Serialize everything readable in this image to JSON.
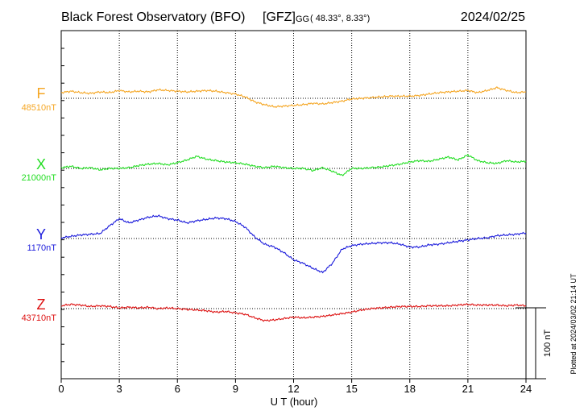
{
  "header": {
    "title": "Black Forest Observatory (BFO)",
    "source": "[GFZ]",
    "coord_prefix": "GG",
    "coords": "( 48.33°,   8.33°)",
    "date": "2024/02/25"
  },
  "footer": {
    "plotted": "Plotted at 2024/03/02 21:14 UT"
  },
  "chart_data": {
    "type": "line",
    "xlabel": "U T (hour)",
    "xlim": [
      0,
      24
    ],
    "xticks": [
      "0",
      "3",
      "6",
      "9",
      "12",
      "15",
      "18",
      "21",
      "24"
    ],
    "grid": true,
    "scale_bar": {
      "label": "100 nT",
      "value": 100
    },
    "series": [
      {
        "name": "F",
        "baseline_label": "48510nT",
        "baseline": 48510,
        "color": "#f5a623",
        "x": [
          0,
          0.5,
          1,
          1.5,
          2,
          2.5,
          3,
          3.5,
          4,
          4.5,
          5,
          5.5,
          6,
          6.5,
          7,
          7.5,
          8,
          8.5,
          9,
          9.5,
          10,
          10.5,
          11,
          11.5,
          12,
          12.5,
          13,
          13.5,
          14,
          14.5,
          15,
          15.5,
          16,
          16.5,
          17,
          17.5,
          18,
          18.5,
          19,
          19.5,
          20,
          20.5,
          21,
          21.5,
          22,
          22.5,
          23,
          23.5,
          24
        ],
        "values": [
          48518,
          48520,
          48518,
          48517,
          48519,
          48518,
          48521,
          48519,
          48520,
          48519,
          48522,
          48521,
          48520,
          48519,
          48520,
          48521,
          48520,
          48518,
          48516,
          48512,
          48505,
          48501,
          48498,
          48499,
          48500,
          48501,
          48503,
          48502,
          48504,
          48506,
          48509,
          48510,
          48511,
          48512,
          48513,
          48513,
          48513,
          48514,
          48516,
          48518,
          48519,
          48520,
          48521,
          48518,
          48521,
          48525,
          48521,
          48518,
          48519
        ]
      },
      {
        "name": "X",
        "baseline_label": "21000nT",
        "baseline": 21000,
        "color": "#22dd22",
        "x": [
          0,
          0.5,
          1,
          1.5,
          2,
          2.5,
          3,
          3.5,
          4,
          4.5,
          5,
          5.5,
          6,
          6.5,
          7,
          7.5,
          8,
          8.5,
          9,
          9.5,
          10,
          10.5,
          11,
          11.5,
          12,
          12.5,
          13,
          13.5,
          14,
          14.5,
          15,
          15.5,
          16,
          16.5,
          17,
          17.5,
          18,
          18.5,
          19,
          19.5,
          20,
          20.5,
          21,
          21.5,
          22,
          22.5,
          23,
          23.5,
          24
        ],
        "values": [
          21001,
          21003,
          21000,
          21001,
          20998,
          21000,
          21000,
          21001,
          21004,
          21006,
          21007,
          21005,
          21008,
          21012,
          21017,
          21013,
          21011,
          21009,
          21008,
          21006,
          21003,
          21001,
          21003,
          21001,
          21000,
          21000,
          20997,
          21001,
          20996,
          20990,
          21000,
          21000,
          21001,
          21002,
          21004,
          21006,
          21009,
          21011,
          21010,
          21013,
          21016,
          21012,
          21019,
          21011,
          21008,
          21007,
          21011,
          21009,
          21010
        ]
      },
      {
        "name": "Y",
        "baseline_label": "1170nT",
        "baseline": 1170,
        "color": "#1a1adb",
        "x": [
          0,
          0.5,
          1,
          1.5,
          2,
          2.5,
          3,
          3.5,
          4,
          4.5,
          5,
          5.5,
          6,
          6.5,
          7,
          7.5,
          8,
          8.5,
          9,
          9.5,
          10,
          10.5,
          11,
          11.5,
          12,
          12.5,
          13,
          13.5,
          14,
          14.5,
          15,
          15.5,
          16,
          16.5,
          17,
          17.5,
          18,
          18.5,
          19,
          19.5,
          20,
          20.5,
          21,
          21.5,
          22,
          22.5,
          23,
          23.5,
          24
        ],
        "values": [
          1171,
          1173,
          1175,
          1176,
          1177,
          1188,
          1198,
          1192,
          1196,
          1200,
          1202,
          1198,
          1196,
          1192,
          1195,
          1197,
          1199,
          1198,
          1194,
          1186,
          1172,
          1162,
          1158,
          1150,
          1140,
          1135,
          1128,
          1122,
          1135,
          1155,
          1160,
          1162,
          1163,
          1164,
          1164,
          1162,
          1158,
          1158,
          1161,
          1162,
          1164,
          1166,
          1168,
          1170,
          1171,
          1174,
          1175,
          1176,
          1178
        ]
      },
      {
        "name": "Z",
        "baseline_label": "43710nT",
        "baseline": 43710,
        "color": "#dd1111",
        "x": [
          0,
          0.5,
          1,
          1.5,
          2,
          2.5,
          3,
          3.5,
          4,
          4.5,
          5,
          5.5,
          6,
          6.5,
          7,
          7.5,
          8,
          8.5,
          9,
          9.5,
          10,
          10.5,
          11,
          11.5,
          12,
          12.5,
          13,
          13.5,
          14,
          14.5,
          15,
          15.5,
          16,
          16.5,
          17,
          17.5,
          18,
          18.5,
          19,
          19.5,
          20,
          20.5,
          21,
          21.5,
          22,
          22.5,
          23,
          23.5,
          24
        ],
        "values": [
          43714,
          43716,
          43715,
          43713,
          43714,
          43713,
          43711,
          43712,
          43711,
          43712,
          43710,
          43711,
          43710,
          43709,
          43708,
          43707,
          43705,
          43706,
          43704,
          43702,
          43697,
          43693,
          43694,
          43696,
          43698,
          43697,
          43698,
          43699,
          43701,
          43703,
          43705,
          43708,
          43710,
          43711,
          43712,
          43713,
          43713,
          43713,
          43714,
          43714,
          43714,
          43715,
          43716,
          43715,
          43715,
          43715,
          43714,
          43715,
          43714
        ]
      }
    ]
  }
}
